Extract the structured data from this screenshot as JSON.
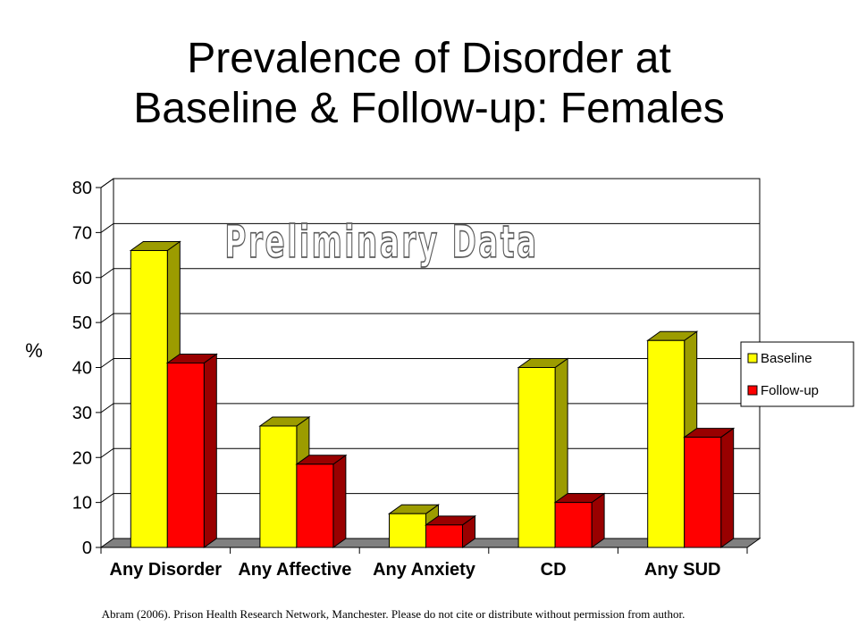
{
  "title_lines": [
    "Prevalence of Disorder at",
    "Baseline & Follow-up: Females"
  ],
  "footnote": "Abram (2006). Prison Health Research Network, Manchester.  Please do not cite or distribute without permission  from author.",
  "watermark": "Preliminary Data",
  "chart_data": {
    "type": "bar",
    "title": "",
    "ylabel": "%",
    "xlabel": "",
    "categories": [
      "Any Disorder",
      "Any Affective",
      "Any Anxiety",
      "CD",
      "Any SUD"
    ],
    "series": [
      {
        "name": "Baseline",
        "values": [
          66,
          27,
          7.5,
          40,
          46
        ],
        "color": "#ffff00",
        "side_color": "#9c9c00"
      },
      {
        "name": "Follow-up",
        "values": [
          41,
          18.5,
          5,
          10,
          24.5
        ],
        "color": "#ff0000",
        "side_color": "#990000"
      }
    ],
    "ylim": [
      0,
      80
    ],
    "yticks": [
      0,
      10,
      20,
      30,
      40,
      50,
      60,
      70,
      80
    ],
    "grid": true,
    "legend_position": "right",
    "style": "3d-clustered-bar"
  },
  "colors": {
    "wall": "#ffffff",
    "floor": "#808080",
    "grid": "#000000"
  }
}
